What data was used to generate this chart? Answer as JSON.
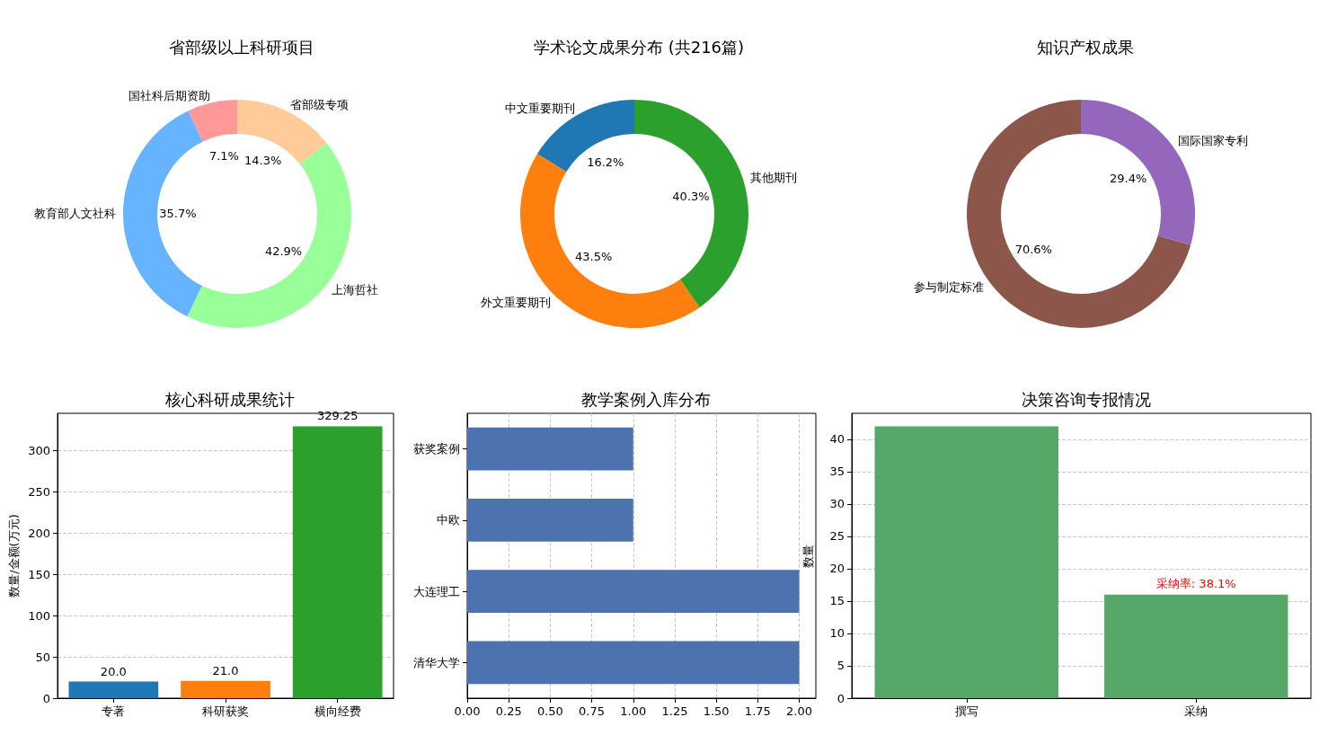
{
  "chart_data": [
    {
      "type": "donut",
      "title": "省部级以上科研项目",
      "categories": [
        "国社科后期资助",
        "教育部人文社科",
        "上海哲社",
        "省部级专项"
      ],
      "values": [
        7.1,
        35.7,
        42.9,
        14.3
      ],
      "colors": [
        "#ff9999",
        "#66b3ff",
        "#99ff99",
        "#ffcc99"
      ],
      "value_labels": [
        "7.1%",
        "35.7%",
        "42.9%",
        "14.3%"
      ]
    },
    {
      "type": "donut",
      "title": "学术论文成果分布 (共216篇)",
      "categories": [
        "中文重要期刊",
        "外文重要期刊",
        "其他期刊"
      ],
      "values": [
        16.2,
        43.5,
        40.3
      ],
      "colors": [
        "#1f77b4",
        "#ff7f0e",
        "#2ca02c"
      ],
      "value_labels": [
        "16.2%",
        "43.5%",
        "40.3%"
      ]
    },
    {
      "type": "donut",
      "title": "知识产权成果",
      "categories": [
        "参与制定标准",
        "国际国家专利"
      ],
      "values": [
        70.6,
        29.4
      ],
      "colors": [
        "#8c564b",
        "#9467bd"
      ],
      "value_labels": [
        "70.6%",
        "29.4%"
      ]
    },
    {
      "type": "bar",
      "title": "核心科研成果统计",
      "ylabel": "数量/金额(万元)",
      "categories": [
        "专著",
        "科研获奖",
        "横向经费"
      ],
      "values": [
        20,
        21,
        329.25
      ],
      "colors": [
        "#1f77b4",
        "#ff7f0e",
        "#2ca02c"
      ],
      "value_labels": [
        "20.0",
        "21.0",
        "329.25"
      ],
      "ylim": [
        0,
        345
      ],
      "yticks": [
        0,
        50,
        100,
        150,
        200,
        250,
        300
      ],
      "grid": "y"
    },
    {
      "type": "bar",
      "orientation": "horizontal",
      "title": "教学案例入库分布",
      "categories": [
        "获奖案例",
        "中欧",
        "大连理工",
        "清华大学"
      ],
      "values": [
        1,
        1,
        2,
        2
      ],
      "color": "#4c72b0",
      "xlim": [
        0,
        2.1
      ],
      "xticks": [
        {
          "value": 0,
          "label": "0.00"
        },
        {
          "value": 0.25,
          "label": "0.25"
        },
        {
          "value": 0.5,
          "label": "0.50"
        },
        {
          "value": 0.75,
          "label": "0.75"
        },
        {
          "value": 1,
          "label": "1.00"
        },
        {
          "value": 1.25,
          "label": "1.25"
        },
        {
          "value": 1.5,
          "label": "1.50"
        },
        {
          "value": 1.75,
          "label": "1.75"
        },
        {
          "value": 2,
          "label": "2.00"
        }
      ],
      "grid": "x"
    },
    {
      "type": "bar",
      "title": "决策咨询专报情况",
      "ylabel": "数量",
      "categories": [
        "撰写",
        "采纳"
      ],
      "values": [
        42,
        16
      ],
      "color": "#55a868",
      "ylim": [
        0,
        44
      ],
      "yticks": [
        0,
        5,
        10,
        15,
        20,
        25,
        30,
        35,
        40
      ],
      "grid": "y",
      "annotations": [
        {
          "text": "采纳率: 38.1%",
          "x": "采纳",
          "y": 16
        }
      ]
    }
  ]
}
